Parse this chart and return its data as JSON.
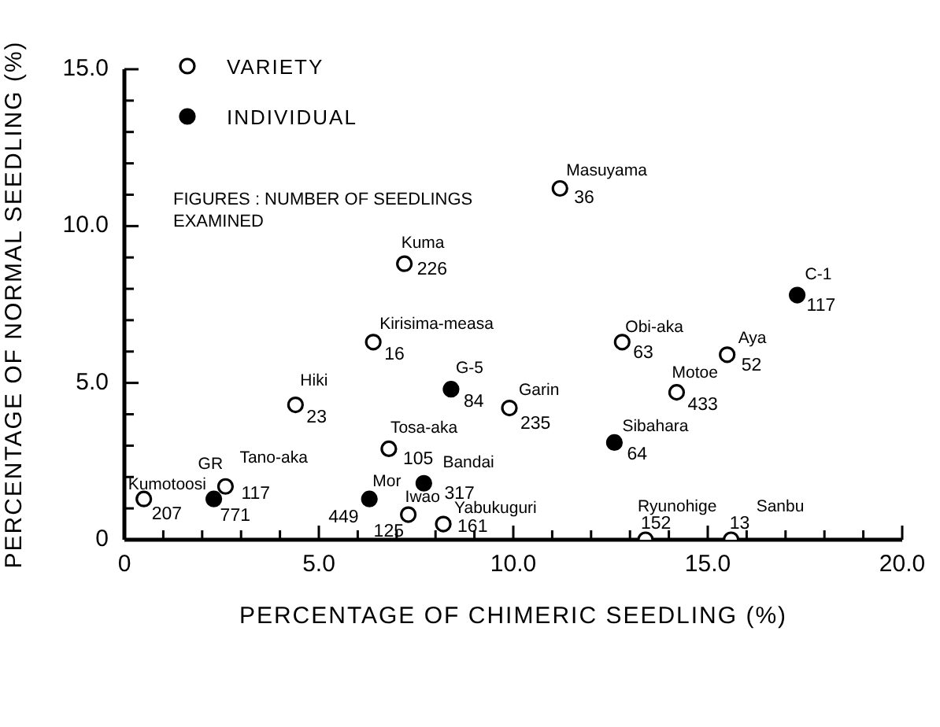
{
  "chart_data": {
    "type": "scatter",
    "xlabel": "PERCENTAGE  OF  CHIMERIC  SEEDLING   (%)",
    "ylabel": "PERCENTAGE  OF  NORMAL  SEEDLING   (%)",
    "xlim": [
      0,
      20
    ],
    "ylim": [
      0,
      15
    ],
    "xticks": [
      0,
      {
        "value": 1,
        "label": null
      },
      {
        "value": 2,
        "label": null
      },
      {
        "value": 3,
        "label": null
      },
      {
        "value": 4,
        "label": null
      },
      {
        "value": 5,
        "label": "5.0"
      },
      {
        "value": 6,
        "label": null
      },
      {
        "value": 7,
        "label": null
      },
      {
        "value": 8,
        "label": null
      },
      {
        "value": 9,
        "label": null
      },
      {
        "value": 10,
        "label": "10.0"
      },
      {
        "value": 11,
        "label": null
      },
      {
        "value": 12,
        "label": null
      },
      {
        "value": 13,
        "label": null
      },
      {
        "value": 14,
        "label": null
      },
      {
        "value": 15,
        "label": "15.0"
      },
      {
        "value": 16,
        "label": null
      },
      {
        "value": 17,
        "label": null
      },
      {
        "value": 18,
        "label": null
      },
      {
        "value": 19,
        "label": null
      },
      {
        "value": 20,
        "label": "20.0"
      }
    ],
    "yticks": [
      0,
      {
        "value": 1,
        "label": null
      },
      {
        "value": 2,
        "label": null
      },
      {
        "value": 3,
        "label": null
      },
      {
        "value": 4,
        "label": null
      },
      {
        "value": 5,
        "label": "5.0"
      },
      {
        "value": 6,
        "label": null
      },
      {
        "value": 7,
        "label": null
      },
      {
        "value": 8,
        "label": null
      },
      {
        "value": 9,
        "label": null
      },
      {
        "value": 10,
        "label": "10.0"
      },
      {
        "value": 11,
        "label": null
      },
      {
        "value": 12,
        "label": null
      },
      {
        "value": 13,
        "label": null
      },
      {
        "value": 14,
        "label": null
      },
      {
        "value": 15,
        "label": "15.0"
      }
    ],
    "grid": false,
    "legend": "top left",
    "marker": "circle",
    "series": [
      {
        "name": "VARIETY",
        "color": "#ffffff",
        "x": [
          11.2,
          7.2,
          6.4,
          12.8,
          15.5,
          14.2,
          4.4,
          9.9,
          6.8,
          0.5,
          2.6,
          7.3,
          8.2,
          13.4,
          15.6
        ],
        "values": [
          11.2,
          8.8,
          6.3,
          6.3,
          5.9,
          4.7,
          4.3,
          4.2,
          2.9,
          1.3,
          1.7,
          0.8,
          0.5,
          0,
          0
        ]
      },
      {
        "name": "INDIVIDUAL",
        "color": "#000000",
        "x": [
          17.3,
          8.4,
          12.6,
          7.7,
          6.3,
          2.3
        ],
        "values": [
          7.8,
          4.8,
          3.1,
          1.8,
          1.3,
          1.3
        ]
      }
    ],
    "annotations": [
      "FIGURES : NUMBER OF SEEDLINGS EXAMINED",
      {
        "text": "Masuyama",
        "x": 11.2,
        "y": 11.2
      },
      {
        "text": "36",
        "x": 11.2,
        "y": 11.2
      },
      {
        "text": "Kuma",
        "x": 7.2,
        "y": 8.8
      },
      {
        "text": "226",
        "x": 7.2,
        "y": 8.8
      },
      {
        "text": "Kirisima-measa",
        "x": 6.4,
        "y": 6.3
      },
      {
        "text": "16",
        "x": 6.4,
        "y": 6.3
      },
      {
        "text": "Obi-aka",
        "x": 12.8,
        "y": 6.3
      },
      {
        "text": "63",
        "x": 12.8,
        "y": 6.3
      },
      {
        "text": "Aya",
        "x": 15.5,
        "y": 5.9
      },
      {
        "text": "52",
        "x": 15.5,
        "y": 5.9
      },
      {
        "text": "Motoe",
        "x": 14.2,
        "y": 4.7
      },
      {
        "text": "433",
        "x": 14.2,
        "y": 4.7
      },
      {
        "text": "Hiki",
        "x": 4.4,
        "y": 4.3
      },
      {
        "text": "23",
        "x": 4.4,
        "y": 4.3
      },
      {
        "text": "Garin",
        "x": 9.9,
        "y": 4.2
      },
      {
        "text": "235",
        "x": 9.9,
        "y": 4.2
      },
      {
        "text": "Tosa-aka",
        "x": 6.8,
        "y": 2.9
      },
      {
        "text": "105",
        "x": 6.8,
        "y": 2.9
      },
      {
        "text": "Kumotoosi",
        "x": 0.5,
        "y": 1.3
      },
      {
        "text": "207",
        "x": 0.5,
        "y": 1.3
      },
      {
        "text": "Tano-aka",
        "x": 2.6,
        "y": 1.7
      },
      {
        "text": "117",
        "x": 2.6,
        "y": 1.7
      },
      {
        "text": "Iwao",
        "x": 7.3,
        "y": 0.8
      },
      {
        "text": "125",
        "x": 7.3,
        "y": 0.8
      },
      {
        "text": "Yabukuguri",
        "x": 8.2,
        "y": 0.5
      },
      {
        "text": "161",
        "x": 8.2,
        "y": 0.5
      },
      {
        "text": "Ryunohige",
        "x": 13.4,
        "y": 0
      },
      {
        "text": "152",
        "x": 13.4,
        "y": 0
      },
      {
        "text": "Sanbu",
        "x": 15.6,
        "y": 0
      },
      {
        "text": "13",
        "x": 15.6,
        "y": 0
      },
      {
        "text": "C-1",
        "x": 17.3,
        "y": 7.8
      },
      {
        "text": "117",
        "x": 17.3,
        "y": 7.8
      },
      {
        "text": "G-5",
        "x": 8.4,
        "y": 4.8
      },
      {
        "text": "84",
        "x": 8.4,
        "y": 4.8
      },
      {
        "text": "Sibahara",
        "x": 12.6,
        "y": 3.1
      },
      {
        "text": "64",
        "x": 12.6,
        "y": 3.1
      },
      {
        "text": "Bandai",
        "x": 7.7,
        "y": 1.8
      },
      {
        "text": "317",
        "x": 7.7,
        "y": 1.8
      },
      {
        "text": "Mor",
        "x": 6.3,
        "y": 1.3
      },
      {
        "text": "449",
        "x": 6.3,
        "y": 1.3
      },
      {
        "text": "GR",
        "x": 2.3,
        "y": 1.3
      },
      {
        "text": "771",
        "x": 2.3,
        "y": 1.3
      }
    ]
  }
}
